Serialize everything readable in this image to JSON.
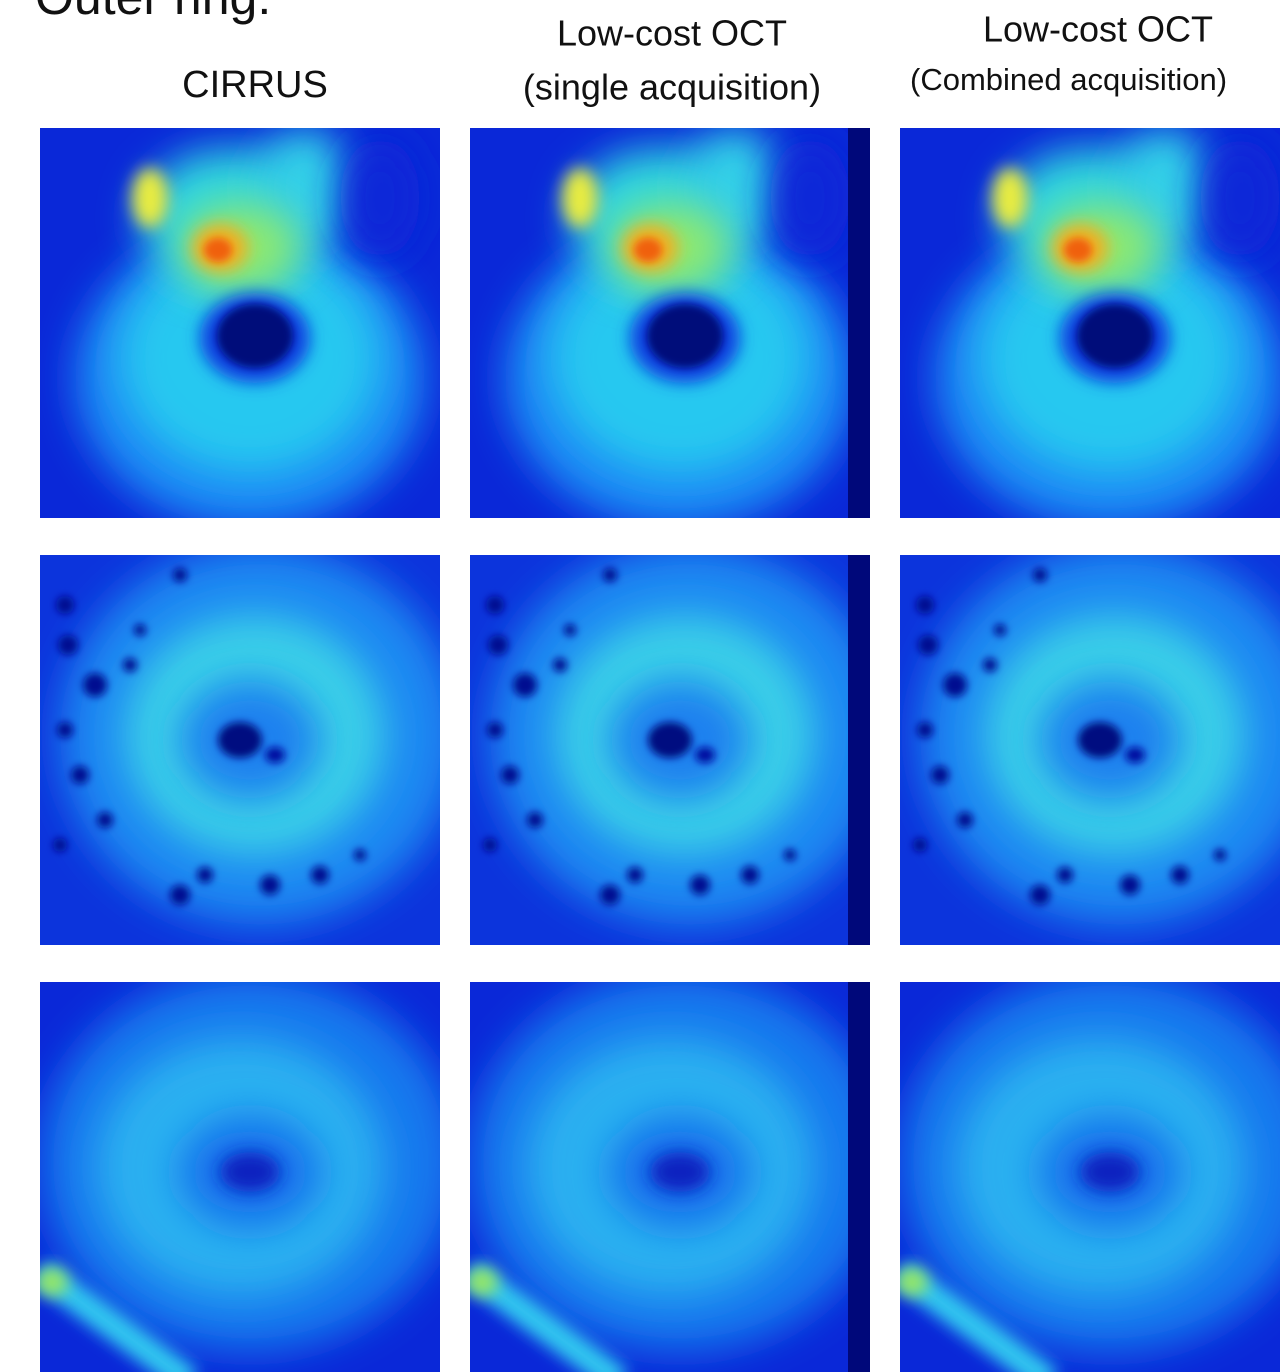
{
  "caption": "Outer ring:",
  "columns": [
    {
      "title": "CIRRUS"
    },
    {
      "title": "Low-cost OCT",
      "subtitle": "(single acquisition)"
    },
    {
      "title": "Low-cost OCT",
      "subtitle": "(Combined acquisition)"
    }
  ]
}
